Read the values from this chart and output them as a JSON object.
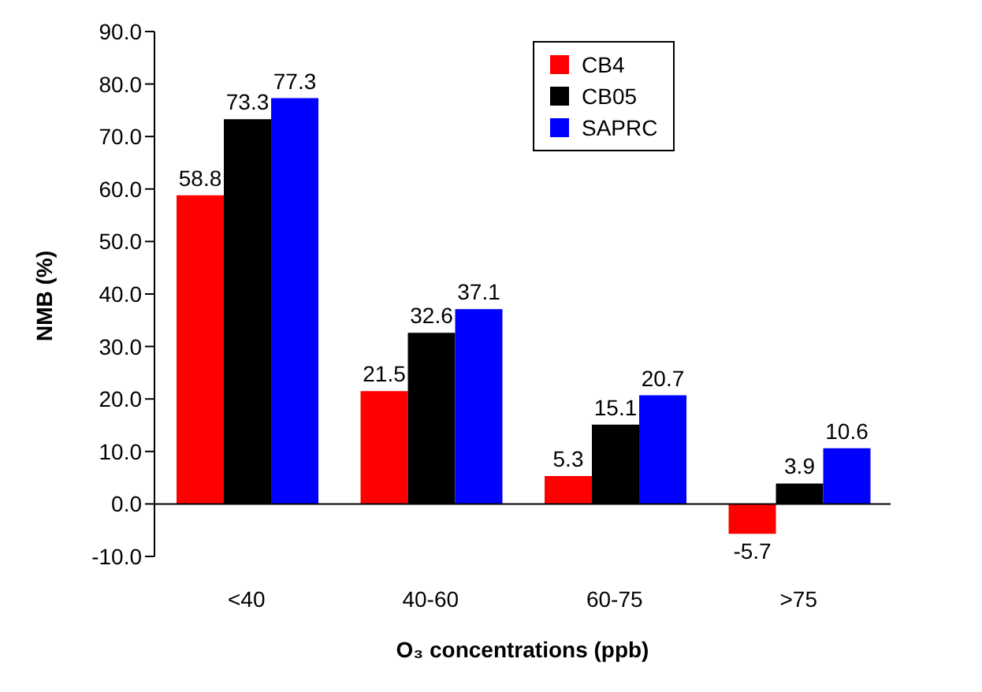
{
  "chart_data": {
    "type": "bar",
    "xlabel": "O₃ concentrations (ppb)",
    "ylabel": "NMB (%)",
    "categories": [
      "<40",
      "40-60",
      "60-75",
      ">75"
    ],
    "series": [
      {
        "name": "CB4",
        "color": "#ff0000",
        "values": [
          58.8,
          21.5,
          5.3,
          -5.7
        ]
      },
      {
        "name": "CB05",
        "color": "#000000",
        "values": [
          73.3,
          32.6,
          15.1,
          3.9
        ]
      },
      {
        "name": "SAPRC",
        "color": "#0000ff",
        "values": [
          77.3,
          37.1,
          20.7,
          10.6
        ]
      }
    ],
    "ylim": [
      -10,
      90
    ],
    "yticks": [
      {
        "value": -10,
        "label": "-10.0"
      },
      {
        "value": 0,
        "label": "0.0"
      },
      {
        "value": 10,
        "label": "10.0"
      },
      {
        "value": 20,
        "label": "20.0"
      },
      {
        "value": 30,
        "label": "30.0"
      },
      {
        "value": 40,
        "label": "40.0"
      },
      {
        "value": 50,
        "label": "50.0"
      },
      {
        "value": 60,
        "label": "60.0"
      },
      {
        "value": 70,
        "label": "70.0"
      },
      {
        "value": 80,
        "label": "80.0"
      },
      {
        "value": 90,
        "label": "90.0"
      }
    ],
    "data_labels": true,
    "legend": "top right"
  }
}
